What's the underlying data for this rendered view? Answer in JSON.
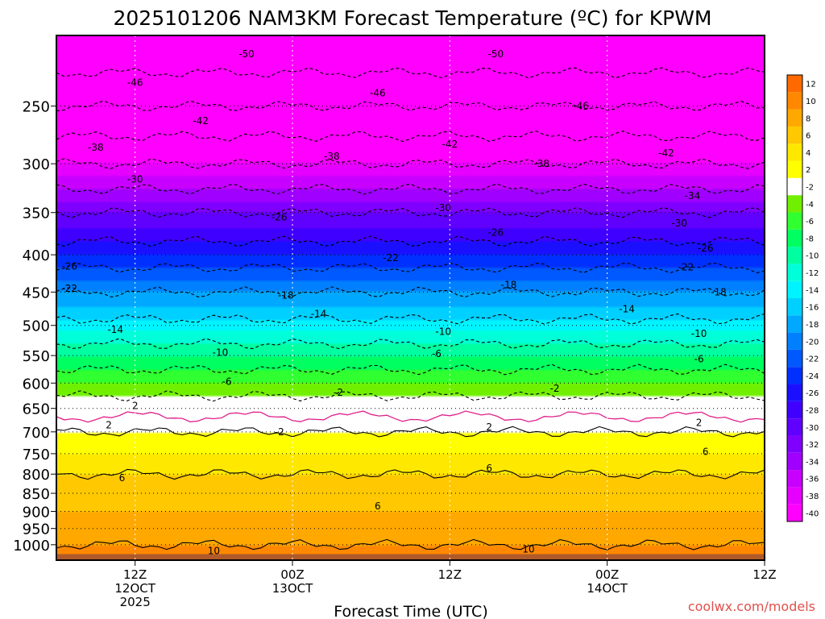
{
  "chart_data": {
    "type": "heatmap",
    "title": "2025101206 NAM3KM Forecast Temperature (ºC) for KPWM",
    "xlabel": "Forecast Time (UTC)",
    "ylabel": "",
    "y_scale": "log",
    "ylim": [
      1050,
      200
    ],
    "xlim": [
      0,
      54
    ],
    "y_ticks": [
      {
        "value": 250,
        "label": "250"
      },
      {
        "value": 300,
        "label": "300"
      },
      {
        "value": 350,
        "label": "350"
      },
      {
        "value": 400,
        "label": "400"
      },
      {
        "value": 450,
        "label": "450"
      },
      {
        "value": 500,
        "label": "500"
      },
      {
        "value": 550,
        "label": "550"
      },
      {
        "value": 600,
        "label": "600"
      },
      {
        "value": 650,
        "label": "650"
      },
      {
        "value": 700,
        "label": "700"
      },
      {
        "value": 750,
        "label": "750"
      },
      {
        "value": 800,
        "label": "800"
      },
      {
        "value": 850,
        "label": "850"
      },
      {
        "value": 900,
        "label": "900"
      },
      {
        "value": 950,
        "label": "950"
      },
      {
        "value": 1000,
        "label": "1000"
      }
    ],
    "x_ticks": [
      {
        "value": 6,
        "lines": [
          "12Z",
          "12OCT",
          "2025"
        ]
      },
      {
        "value": 18,
        "lines": [
          "00Z",
          "13OCT"
        ]
      },
      {
        "value": 30,
        "lines": [
          "12Z"
        ]
      },
      {
        "value": 42,
        "lines": [
          "00Z",
          "14OCT"
        ]
      },
      {
        "value": 54,
        "lines": [
          "12Z"
        ]
      }
    ],
    "colorbar": {
      "levels": [
        -40,
        -38,
        -36,
        -34,
        -32,
        -30,
        -28,
        -26,
        -24,
        -22,
        -20,
        -18,
        -16,
        -14,
        -12,
        -10,
        -8,
        -6,
        -4,
        -2,
        2,
        4,
        6,
        8,
        10,
        12
      ],
      "colors": [
        "#ff00ff",
        "#e600ff",
        "#c800ff",
        "#a000ff",
        "#8000ff",
        "#6000ff",
        "#4000ff",
        "#1a10ff",
        "#0030ff",
        "#0058ff",
        "#0080ff",
        "#00a8ff",
        "#00d0ff",
        "#00f4ff",
        "#00ffd8",
        "#00ffa0",
        "#00ff60",
        "#30ff30",
        "#70f000",
        "#ffffff",
        "#ffff00",
        "#ffe800",
        "#ffc800",
        "#ffa800",
        "#ff8800",
        "#ff6a00"
      ]
    },
    "profile": [
      {
        "pressure": 200,
        "temperature": -54
      },
      {
        "pressure": 250,
        "temperature": -46
      },
      {
        "pressure": 300,
        "temperature": -38
      },
      {
        "pressure": 350,
        "temperature": -30
      },
      {
        "pressure": 400,
        "temperature": -24
      },
      {
        "pressure": 450,
        "temperature": -18
      },
      {
        "pressure": 500,
        "temperature": -13
      },
      {
        "pressure": 550,
        "temperature": -8
      },
      {
        "pressure": 600,
        "temperature": -4
      },
      {
        "pressure": 650,
        "temperature": 0
      },
      {
        "pressure": 700,
        "temperature": 2
      },
      {
        "pressure": 750,
        "temperature": 4
      },
      {
        "pressure": 800,
        "temperature": 6
      },
      {
        "pressure": 850,
        "temperature": 7
      },
      {
        "pressure": 900,
        "temperature": 8
      },
      {
        "pressure": 950,
        "temperature": 9
      },
      {
        "pressure": 1000,
        "temperature": 10
      },
      {
        "pressure": 1050,
        "temperature": 12
      }
    ],
    "contour_labels": [
      {
        "text": "-50",
        "x": 14.5,
        "pressure": 212
      },
      {
        "text": "-50",
        "x": 33.5,
        "pressure": 212
      },
      {
        "text": "-46",
        "x": 6,
        "pressure": 232
      },
      {
        "text": "-46",
        "x": 24.5,
        "pressure": 240
      },
      {
        "text": "-46",
        "x": 40,
        "pressure": 250
      },
      {
        "text": "-42",
        "x": 11,
        "pressure": 262
      },
      {
        "text": "-42",
        "x": 30,
        "pressure": 282
      },
      {
        "text": "-42",
        "x": 46.5,
        "pressure": 290
      },
      {
        "text": "-38",
        "x": 3,
        "pressure": 285
      },
      {
        "text": "-38",
        "x": 21,
        "pressure": 293
      },
      {
        "text": "-38",
        "x": 37,
        "pressure": 300
      },
      {
        "text": "-34",
        "x": 48.5,
        "pressure": 332
      },
      {
        "text": "-30",
        "x": 6,
        "pressure": 315
      },
      {
        "text": "-30",
        "x": 29.5,
        "pressure": 345
      },
      {
        "text": "-30",
        "x": 47.5,
        "pressure": 362
      },
      {
        "text": "-26",
        "x": 1,
        "pressure": 415
      },
      {
        "text": "-26",
        "x": 17,
        "pressure": 355
      },
      {
        "text": "-26",
        "x": 33.5,
        "pressure": 373
      },
      {
        "text": "-26",
        "x": 49.5,
        "pressure": 392
      },
      {
        "text": "-22",
        "x": 1,
        "pressure": 445
      },
      {
        "text": "-22",
        "x": 25.5,
        "pressure": 404
      },
      {
        "text": "-22",
        "x": 48,
        "pressure": 416
      },
      {
        "text": "-18",
        "x": 17.5,
        "pressure": 455
      },
      {
        "text": "-18",
        "x": 34.5,
        "pressure": 440
      },
      {
        "text": "-18",
        "x": 50.5,
        "pressure": 450
      },
      {
        "text": "-14",
        "x": 20,
        "pressure": 482
      },
      {
        "text": "-14",
        "x": 4.5,
        "pressure": 507
      },
      {
        "text": "-14",
        "x": 43.5,
        "pressure": 475
      },
      {
        "text": "-10",
        "x": 12.5,
        "pressure": 545
      },
      {
        "text": "-10",
        "x": 29.5,
        "pressure": 510
      },
      {
        "text": "-10",
        "x": 49,
        "pressure": 513
      },
      {
        "text": "-6",
        "x": 13,
        "pressure": 597
      },
      {
        "text": "-6",
        "x": 29,
        "pressure": 547
      },
      {
        "text": "-6",
        "x": 49,
        "pressure": 556
      },
      {
        "text": "-2",
        "x": 21.5,
        "pressure": 618
      },
      {
        "text": "-2",
        "x": 38,
        "pressure": 610
      },
      {
        "text": "-2",
        "x": 17,
        "pressure": 700
      },
      {
        "text": "2",
        "x": 6,
        "pressure": 645
      },
      {
        "text": "2",
        "x": 4,
        "pressure": 685
      },
      {
        "text": "2",
        "x": 33,
        "pressure": 690
      },
      {
        "text": "2",
        "x": 49,
        "pressure": 680
      },
      {
        "text": "6",
        "x": 5,
        "pressure": 810
      },
      {
        "text": "6",
        "x": 33,
        "pressure": 785
      },
      {
        "text": "6",
        "x": 49.5,
        "pressure": 745
      },
      {
        "text": "6",
        "x": 24.5,
        "pressure": 885
      },
      {
        "text": "10",
        "x": 12,
        "pressure": 1020
      },
      {
        "text": "10",
        "x": 36,
        "pressure": 1015
      }
    ],
    "zero_line_pressure": 667
  },
  "credit": "coolwx.com/models"
}
